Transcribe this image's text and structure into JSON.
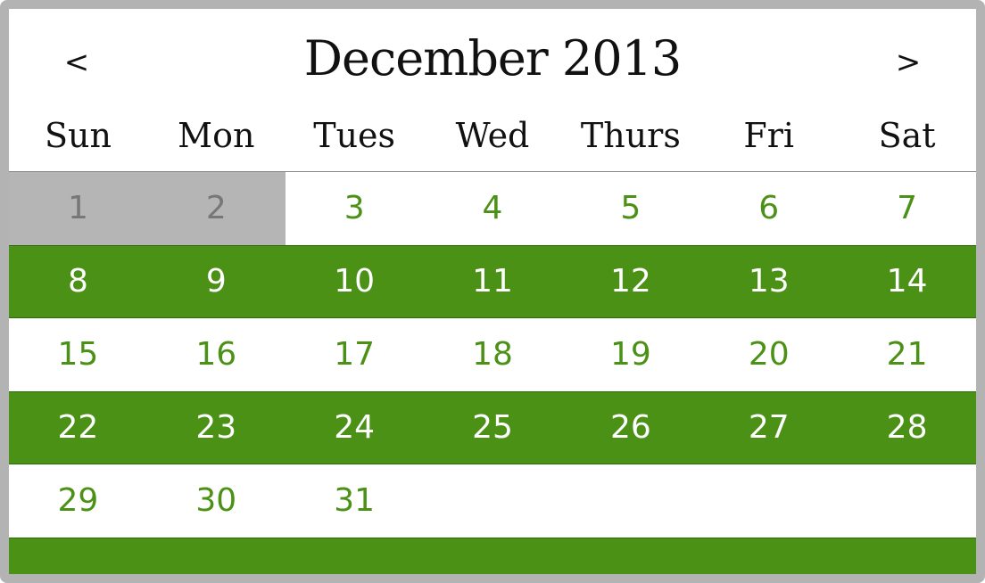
{
  "calendar": {
    "month_title": "December 2013",
    "prev_label": "<",
    "next_label": ">",
    "weekdays": [
      "Sun",
      "Mon",
      "Tues",
      "Wed",
      "Thurs",
      "Fri",
      "Sat"
    ],
    "weeks": [
      [
        {
          "label": "1",
          "state": "disabled"
        },
        {
          "label": "2",
          "state": "disabled"
        },
        {
          "label": "3",
          "state": "active"
        },
        {
          "label": "4",
          "state": "active"
        },
        {
          "label": "5",
          "state": "active"
        },
        {
          "label": "6",
          "state": "active"
        },
        {
          "label": "7",
          "state": "active"
        }
      ],
      [
        {
          "label": "8",
          "state": "active"
        },
        {
          "label": "9",
          "state": "active"
        },
        {
          "label": "10",
          "state": "active"
        },
        {
          "label": "11",
          "state": "active"
        },
        {
          "label": "12",
          "state": "active"
        },
        {
          "label": "13",
          "state": "active"
        },
        {
          "label": "14",
          "state": "active"
        }
      ],
      [
        {
          "label": "15",
          "state": "active"
        },
        {
          "label": "16",
          "state": "active"
        },
        {
          "label": "17",
          "state": "active"
        },
        {
          "label": "18",
          "state": "active"
        },
        {
          "label": "19",
          "state": "active"
        },
        {
          "label": "20",
          "state": "active"
        },
        {
          "label": "21",
          "state": "active"
        }
      ],
      [
        {
          "label": "22",
          "state": "active"
        },
        {
          "label": "23",
          "state": "active"
        },
        {
          "label": "24",
          "state": "active"
        },
        {
          "label": "25",
          "state": "active"
        },
        {
          "label": "26",
          "state": "active"
        },
        {
          "label": "27",
          "state": "active"
        },
        {
          "label": "28",
          "state": "active"
        }
      ],
      [
        {
          "label": "29",
          "state": "active"
        },
        {
          "label": "30",
          "state": "active"
        },
        {
          "label": "31",
          "state": "active"
        },
        {
          "label": "",
          "state": "empty"
        },
        {
          "label": "",
          "state": "empty"
        },
        {
          "label": "",
          "state": "empty"
        },
        {
          "label": "",
          "state": "empty"
        }
      ]
    ]
  },
  "colors": {
    "accent_green": "#4b9116",
    "disabled_gray": "#b5b5b5",
    "frame_gray": "#b3b3b3"
  }
}
